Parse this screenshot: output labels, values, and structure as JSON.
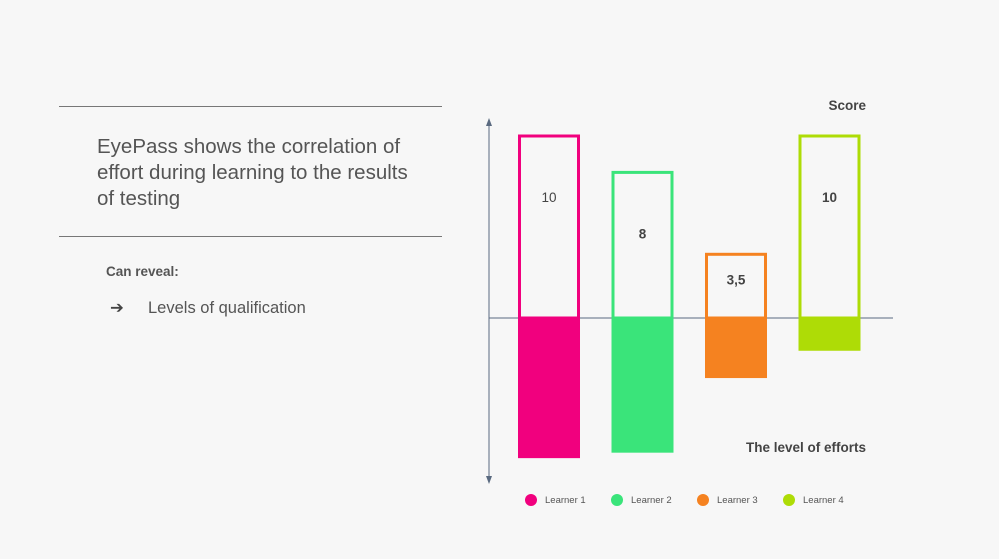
{
  "headline": "EyePass shows the correlation of effort during learning to the results of testing",
  "reveal": {
    "label": "Can reveal:",
    "items": [
      {
        "icon": "arrow-right-icon",
        "arrow": "➔",
        "text": "Levels of qualification"
      }
    ]
  },
  "chart_data": {
    "type": "bar",
    "ylabel_top": "Score",
    "ylabel_bottom": "The level of efforts",
    "categories": [
      "Learner 1",
      "Learner 2",
      "Learner 3",
      "Learner 4"
    ],
    "score": [
      10,
      8,
      3.5,
      10
    ],
    "score_labels": [
      "10",
      "8",
      "3,5",
      "10"
    ],
    "effort": [
      7.7,
      7.4,
      3.3,
      1.8
    ],
    "colors": [
      "#f1007e",
      "#3ae47a",
      "#f58220",
      "#aedc06"
    ],
    "legend_position": "bottom"
  }
}
